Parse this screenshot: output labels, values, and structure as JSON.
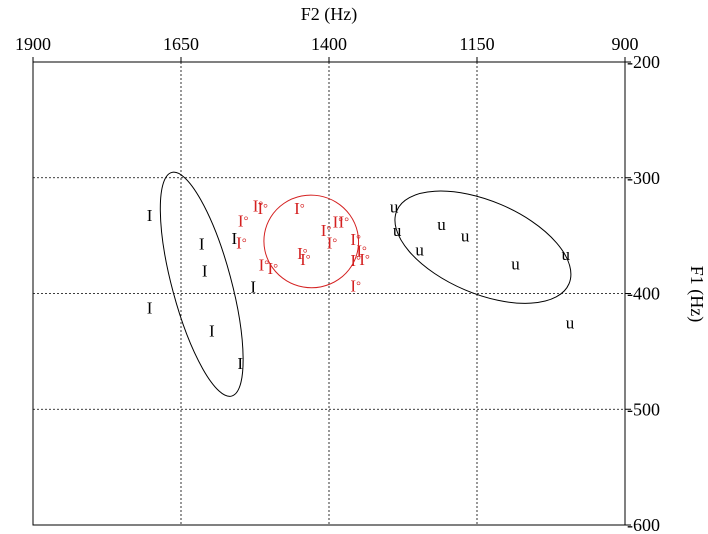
{
  "chart_data": {
    "type": "scatter",
    "xlabel": "F2 (Hz)",
    "ylabel": "F1 (Hz)",
    "xlim": [
      1900,
      900
    ],
    "ylim": [
      200,
      600
    ],
    "x_reversed": true,
    "y_reversed": true,
    "x_axis_position": "top",
    "y_axis_position": "right",
    "xticks": [
      1900,
      1650,
      1400,
      1150,
      900
    ],
    "yticks": [
      200,
      300,
      400,
      500,
      600
    ],
    "grid": true,
    "series": [
      {
        "color": "#000000",
        "points": [
          {
            "label": "I",
            "x": 1703,
            "y": 332
          },
          {
            "label": "I",
            "x": 1615,
            "y": 357
          },
          {
            "label": "I",
            "x": 1610,
            "y": 380
          },
          {
            "label": "I",
            "x": 1560,
            "y": 352
          },
          {
            "label": "I",
            "x": 1528,
            "y": 394
          },
          {
            "label": "I",
            "x": 1703,
            "y": 412
          },
          {
            "label": "I",
            "x": 1598,
            "y": 432
          },
          {
            "label": "I",
            "x": 1550,
            "y": 460
          }
        ],
        "ellipse": {
          "cx": 1615,
          "cy": 392,
          "rx": 50,
          "ry": 100,
          "angle_deg": -15
        }
      },
      {
        "color": "#d42020",
        "points": [
          {
            "label": "I°",
            "x": 1520,
            "y": 324
          },
          {
            "label": "I°",
            "x": 1512,
            "y": 326
          },
          {
            "label": "I°",
            "x": 1545,
            "y": 337
          },
          {
            "label": "I°",
            "x": 1450,
            "y": 326
          },
          {
            "label": "I°",
            "x": 1385,
            "y": 338
          },
          {
            "label": "I°",
            "x": 1375,
            "y": 338
          },
          {
            "label": "I°",
            "x": 1405,
            "y": 345
          },
          {
            "label": "I°",
            "x": 1548,
            "y": 356
          },
          {
            "label": "I°",
            "x": 1395,
            "y": 356
          },
          {
            "label": "I°",
            "x": 1355,
            "y": 353
          },
          {
            "label": "I°",
            "x": 1345,
            "y": 363
          },
          {
            "label": "I°",
            "x": 1445,
            "y": 365
          },
          {
            "label": "I°",
            "x": 1440,
            "y": 370
          },
          {
            "label": "I°",
            "x": 1355,
            "y": 371
          },
          {
            "label": "I°",
            "x": 1340,
            "y": 370
          },
          {
            "label": "I°",
            "x": 1510,
            "y": 375
          },
          {
            "label": "I°",
            "x": 1495,
            "y": 378
          },
          {
            "label": "I°",
            "x": 1355,
            "y": 393
          }
        ],
        "ellipse": {
          "cx": 1430,
          "cy": 355,
          "rx": 80,
          "ry": 40,
          "angle_deg": 10
        }
      },
      {
        "color": "#000000",
        "points": [
          {
            "label": "u",
            "x": 1290,
            "y": 325
          },
          {
            "label": "u",
            "x": 1285,
            "y": 345
          },
          {
            "label": "u",
            "x": 1210,
            "y": 340
          },
          {
            "label": "u",
            "x": 1170,
            "y": 350
          },
          {
            "label": "u",
            "x": 1247,
            "y": 362
          },
          {
            "label": "u",
            "x": 1085,
            "y": 374
          },
          {
            "label": "u",
            "x": 1000,
            "y": 366
          },
          {
            "label": "u",
            "x": 993,
            "y": 425
          }
        ],
        "ellipse": {
          "cx": 1140,
          "cy": 360,
          "rx": 158,
          "ry": 40,
          "angle_deg": 23
        }
      }
    ]
  }
}
